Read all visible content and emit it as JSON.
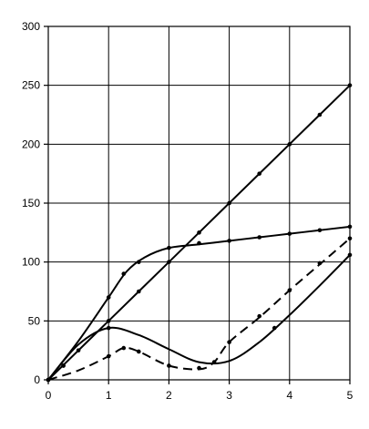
{
  "chart_data": {
    "type": "line",
    "title": "",
    "xlabel": "",
    "ylabel": "",
    "xlim": [
      0,
      5
    ],
    "ylim": [
      0,
      300
    ],
    "grid": true,
    "legend": "none",
    "x_ticks": [
      "0",
      "1",
      "2",
      "3",
      "4",
      "5"
    ],
    "y_ticks": [
      "0",
      "50",
      "100",
      "150",
      "200",
      "250",
      "300"
    ],
    "series": [
      {
        "style": "solid",
        "markers": true,
        "curve": [
          [
            0,
            0
          ],
          [
            1,
            50
          ],
          [
            2,
            100
          ],
          [
            3,
            150
          ],
          [
            4,
            200
          ],
          [
            5,
            250
          ]
        ],
        "points": [
          [
            0,
            0
          ],
          [
            0.25,
            12
          ],
          [
            0.5,
            25
          ],
          [
            1,
            50
          ],
          [
            1.5,
            75
          ],
          [
            2,
            100
          ],
          [
            2.5,
            125
          ],
          [
            3,
            150
          ],
          [
            3.5,
            175
          ],
          [
            4,
            200
          ],
          [
            4.5,
            225
          ],
          [
            5,
            250
          ]
        ]
      },
      {
        "style": "solid",
        "markers": true,
        "curve": [
          [
            0,
            0
          ],
          [
            0.5,
            33
          ],
          [
            1,
            70
          ],
          [
            1.3,
            92
          ],
          [
            1.6,
            104
          ],
          [
            2,
            112
          ],
          [
            2.5,
            115
          ],
          [
            3,
            118
          ],
          [
            3.5,
            121
          ],
          [
            4,
            124
          ],
          [
            4.5,
            127
          ],
          [
            5,
            130
          ]
        ],
        "points": [
          [
            0,
            0
          ],
          [
            1,
            70
          ],
          [
            1.25,
            90
          ],
          [
            1.5,
            100
          ],
          [
            2,
            112
          ],
          [
            2.5,
            116
          ],
          [
            3,
            118
          ],
          [
            3.5,
            121
          ],
          [
            4,
            124
          ],
          [
            4.5,
            127
          ],
          [
            5,
            130
          ]
        ]
      },
      {
        "style": "solid",
        "markers": true,
        "curve": [
          [
            0,
            0
          ],
          [
            0.5,
            30
          ],
          [
            1,
            44
          ],
          [
            1.5,
            38
          ],
          [
            2,
            26
          ],
          [
            2.5,
            15
          ],
          [
            3,
            16
          ],
          [
            3.5,
            32
          ],
          [
            4,
            55
          ],
          [
            4.5,
            80
          ],
          [
            5,
            106
          ]
        ],
        "points": [
          [
            0,
            0
          ],
          [
            0.25,
            12
          ],
          [
            1,
            44
          ],
          [
            2.75,
            15
          ],
          [
            3.75,
            44
          ],
          [
            5,
            106
          ]
        ]
      },
      {
        "style": "dashed",
        "markers": true,
        "curve": [
          [
            0,
            0
          ],
          [
            0.5,
            8
          ],
          [
            1,
            20
          ],
          [
            1.25,
            27
          ],
          [
            1.5,
            24
          ],
          [
            2,
            12
          ],
          [
            2.5,
            9
          ],
          [
            2.75,
            15
          ],
          [
            3,
            32
          ],
          [
            3.5,
            53
          ],
          [
            4,
            76
          ],
          [
            4.5,
            98
          ],
          [
            5,
            120
          ]
        ],
        "points": [
          [
            0,
            0
          ],
          [
            1,
            20
          ],
          [
            1.25,
            27
          ],
          [
            1.5,
            24
          ],
          [
            2,
            12
          ],
          [
            2.5,
            10
          ],
          [
            3,
            32
          ],
          [
            3.5,
            54
          ],
          [
            4,
            76
          ],
          [
            4.5,
            99
          ],
          [
            5,
            120
          ]
        ]
      }
    ]
  }
}
